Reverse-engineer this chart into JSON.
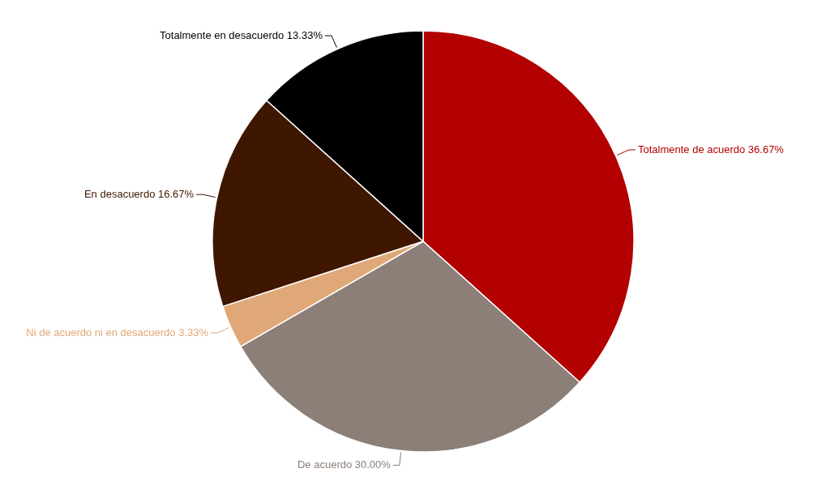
{
  "chart_data": {
    "type": "pie",
    "categories": [
      "Totalmente de acuerdo",
      "De acuerdo",
      "Ni de acuerdo ni en desacuerdo",
      "En desacuerdo",
      "Totalmente en desacuerdo"
    ],
    "values": [
      36.67,
      30.0,
      3.33,
      16.67,
      13.33
    ],
    "value_labels": [
      "36.67%",
      "30.00%",
      "3.33%",
      "16.67%",
      "13.33%"
    ],
    "colors": [
      "#b30000",
      "#8c7f78",
      "#e0a878",
      "#3f1600",
      "#000000"
    ]
  }
}
